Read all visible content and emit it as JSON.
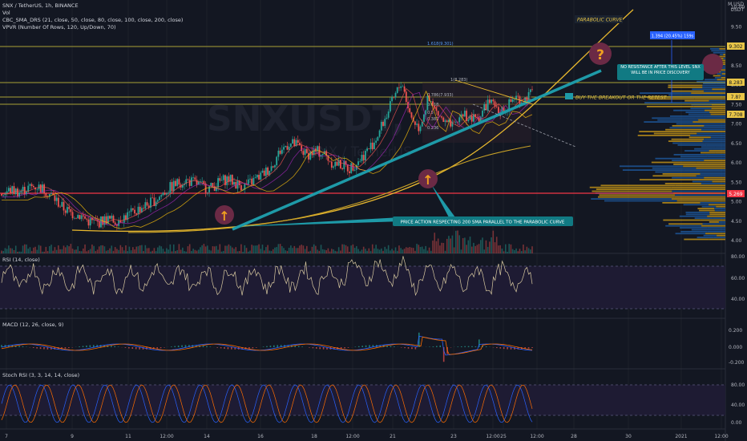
{
  "header": {
    "symbol_line": "SNX / TetherUS, 1h, BINANCE",
    "vol_label": "Vol",
    "sma_label": "CBC_SMA_DRS (21, close, 50, close, 80, close, 100, close, 200, close)",
    "vpvr_label": "VPVR (Number Of Rows, 120, Up/Down, 70)",
    "unit_top": "M USD",
    "unit_bottom": "USDT"
  },
  "watermark": {
    "big": "SNXUSDT, 1h",
    "small": "SNX / TetherUS"
  },
  "annotations": {
    "parabolic_curve": "PARABOLIC CURVE",
    "no_resistance": "NO RESISTANCE AFTER THIS LEVEL SNX WILL BE IN PRICE DISCOVERY",
    "buy_breakout": "BUY THE BREAKOUT OR THE RETEST",
    "price_action": "PRICE ACTION RESPECTING 200 SMA PARALLEL TO THE  PARABOLIC CURVE",
    "measure": "1.394 (20.45%) 159s",
    "fib_1618": "1.618(9.301)",
    "fib_1": "1(8.283)",
    "fib_786": "0.786(7.933)",
    "fib_618": "0.618",
    "fib_5": "0.5",
    "fib_382": "0.382",
    "fib_236": "0.236"
  },
  "price_tags": {
    "p1": "9.302",
    "p2": "8.283",
    "p3": "7.8?",
    "p4": "7.708",
    "p5": "5.269"
  },
  "panes": {
    "rsi_label": "RSI (14, close)",
    "macd_label": "MACD (12, 26, close, 9)",
    "stoch_label": "Stoch RSI (3, 3, 14, 14, close)"
  },
  "chart_data": {
    "type": "line",
    "price_axis": [
      "10.00",
      "9.50",
      "9.00",
      "8.50",
      "8.00",
      "7.50",
      "7.00",
      "6.50",
      "6.00",
      "5.50",
      "5.00",
      "4.50",
      "4.00"
    ],
    "rsi_axis": [
      "80.00",
      "60.00",
      "40.00"
    ],
    "macd_axis": [
      "0.200",
      "0.000",
      "-0.200"
    ],
    "stoch_axis": [
      "80.00",
      "40.00",
      "0.00"
    ],
    "x_ticks": [
      "7",
      "9",
      "11",
      "12:00",
      "14",
      "16",
      "18",
      "12:00",
      "21",
      "23",
      "12:00",
      "25",
      "12:00",
      "28",
      "30",
      "2021",
      "12:00"
    ],
    "price_path_y": [
      5.2,
      5.3,
      5.25,
      5.35,
      5.4,
      5.3,
      5.1,
      4.85,
      4.7,
      4.65,
      4.5,
      4.45,
      4.55,
      4.5,
      4.6,
      4.7,
      4.85,
      4.95,
      5.1,
      5.3,
      5.45,
      5.55,
      5.5,
      5.4,
      5.35,
      5.5,
      5.6,
      5.45,
      5.4,
      5.55,
      5.7,
      5.9,
      6.3,
      6.5,
      6.45,
      6.2,
      6.3,
      6.25,
      6.0,
      5.95,
      5.85,
      6.05,
      6.3,
      6.6,
      7.1,
      7.6,
      8.1,
      7.2,
      6.9,
      7.6,
      7.3,
      7.0,
      6.9,
      7.3,
      7.1,
      7.2,
      7.6,
      7.3,
      7.4,
      7.7,
      7.6,
      7.8
    ]
  },
  "colors": {
    "bg": "#131722",
    "up": "#26a69a",
    "down": "#ef5350",
    "curve": "#f0b90b",
    "trend": "#1e9aa8",
    "sma": "#c6a000",
    "red_line": "#f23645"
  }
}
